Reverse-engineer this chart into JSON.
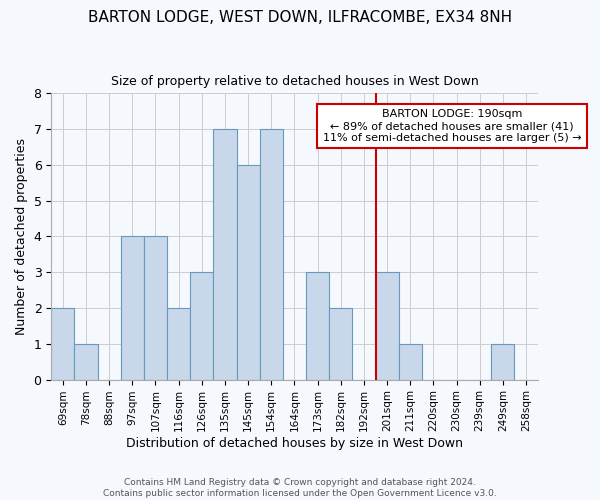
{
  "title": "BARTON LODGE, WEST DOWN, ILFRACOMBE, EX34 8NH",
  "subtitle": "Size of property relative to detached houses in West Down",
  "xlabel": "Distribution of detached houses by size in West Down",
  "ylabel": "Number of detached properties",
  "footer_line1": "Contains HM Land Registry data © Crown copyright and database right 2024.",
  "footer_line2": "Contains public sector information licensed under the Open Government Licence v3.0.",
  "bin_labels": [
    "69sqm",
    "78sqm",
    "88sqm",
    "97sqm",
    "107sqm",
    "116sqm",
    "126sqm",
    "135sqm",
    "145sqm",
    "154sqm",
    "164sqm",
    "173sqm",
    "182sqm",
    "192sqm",
    "201sqm",
    "211sqm",
    "220sqm",
    "230sqm",
    "239sqm",
    "249sqm",
    "258sqm"
  ],
  "bar_values": [
    2,
    1,
    0,
    4,
    4,
    2,
    3,
    7,
    6,
    7,
    0,
    3,
    2,
    0,
    3,
    1,
    0,
    0,
    0,
    1,
    0
  ],
  "bar_color": "#c8d8ea",
  "bar_edge_color": "#6699bb",
  "ylim": [
    0,
    8
  ],
  "yticks": [
    0,
    1,
    2,
    3,
    4,
    5,
    6,
    7,
    8
  ],
  "property_line_x": 13.5,
  "annotation_title": "BARTON LODGE: 190sqm",
  "annotation_line1": "← 89% of detached houses are smaller (41)",
  "annotation_line2": "11% of semi-detached houses are larger (5) →",
  "annotation_box_color": "#ffffff",
  "annotation_border_color": "#cc0000",
  "vline_color": "#cc0000",
  "grid_color": "#cccccc",
  "background_color": "#f5f8fc",
  "plot_bg_color": "#f5f8fc"
}
